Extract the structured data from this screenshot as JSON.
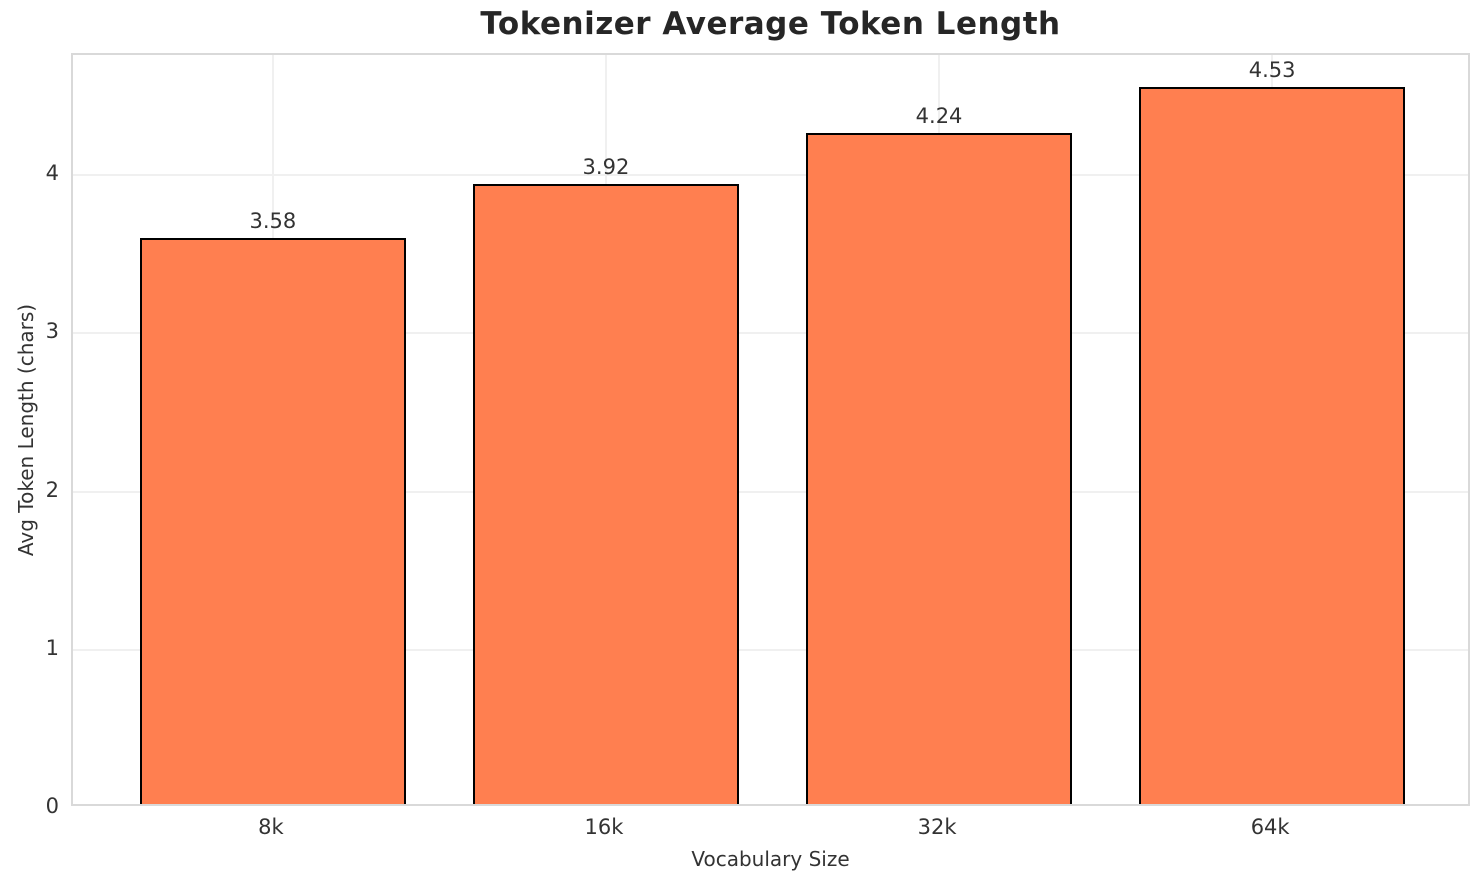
{
  "chart_data": {
    "type": "bar",
    "title": "Tokenizer Average Token Length",
    "xlabel": "Vocabulary Size",
    "ylabel": "Avg Token Length (chars)",
    "categories": [
      "8k",
      "16k",
      "32k",
      "64k"
    ],
    "values": [
      3.58,
      3.92,
      4.24,
      4.53
    ],
    "value_labels": [
      "3.58",
      "3.92",
      "4.24",
      "4.53"
    ],
    "yticks": [
      0,
      1,
      2,
      3,
      4
    ],
    "ylim": [
      0,
      4.76
    ],
    "xlim": [
      -0.6,
      3.6
    ],
    "bar_width_units": 0.8,
    "grid": true,
    "legend": "none",
    "colors": {
      "bar_fill": "#FF7F50",
      "bar_edge": "#000000",
      "grid": "#F0F0F0",
      "spine": "#D9D9D9",
      "title_text": "#262626",
      "tick_text": "#333333",
      "background": "#FFFFFF"
    }
  }
}
